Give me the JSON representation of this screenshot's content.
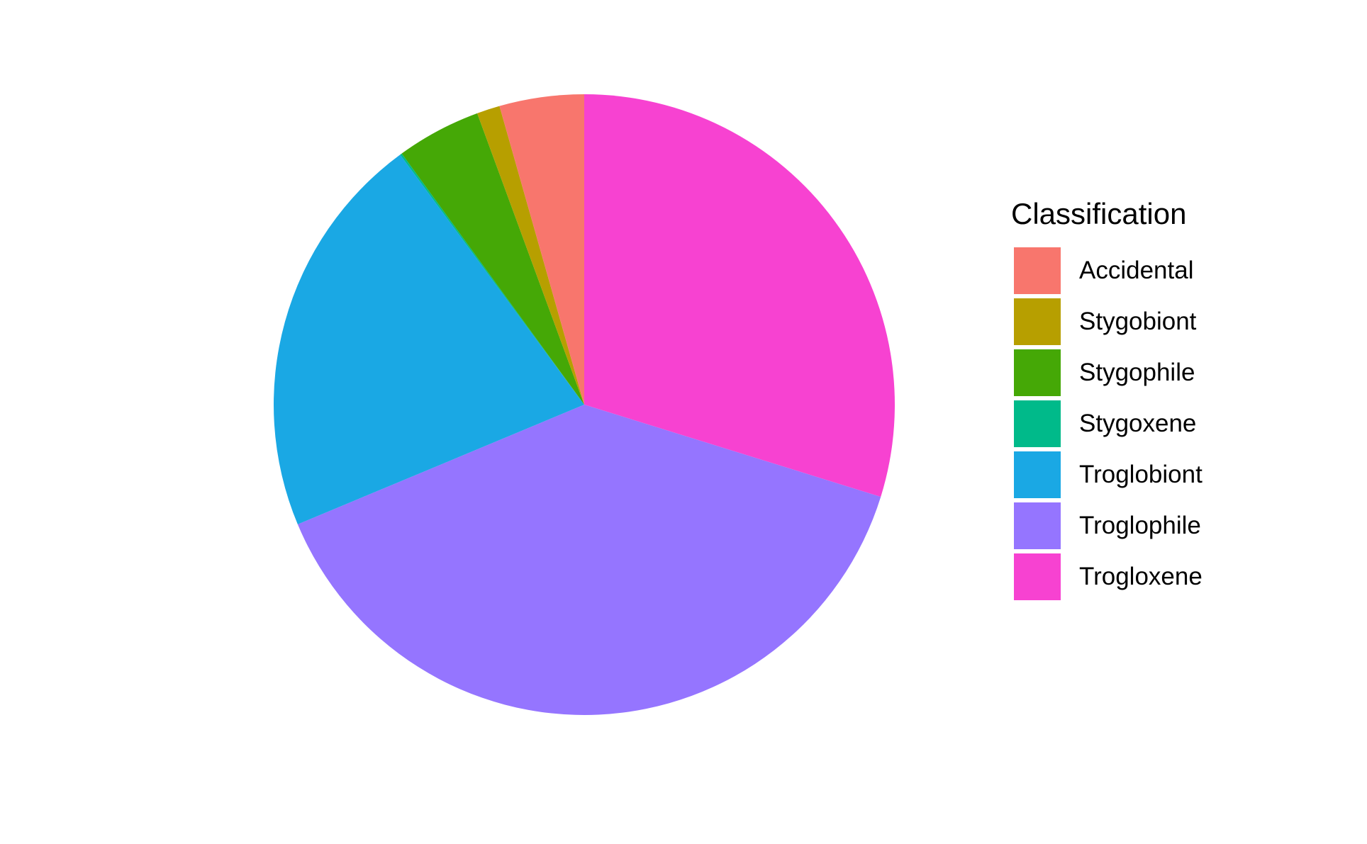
{
  "chart_data": {
    "type": "pie",
    "legend_title": "Classification",
    "legend_position": "right",
    "start_angle": "12 o'clock",
    "direction": "clockwise",
    "slice_order": [
      "Trogloxene",
      "Troglophile",
      "Troglobiont",
      "Stygoxene",
      "Stygophile",
      "Stygobiont",
      "Accidental"
    ],
    "slices": [
      {
        "label": "Accidental",
        "value": 4.4,
        "color": "#F8766D"
      },
      {
        "label": "Stygobiont",
        "value": 1.2,
        "color": "#B79F00"
      },
      {
        "label": "Stygophile",
        "value": 4.4,
        "color": "#45A806"
      },
      {
        "label": "Stygoxene",
        "value": 0.1,
        "color": "#00BA8A"
      },
      {
        "label": "Troglobiont",
        "value": 21.2,
        "color": "#1AA8E4"
      },
      {
        "label": "Troglophile",
        "value": 38.9,
        "color": "#9575FF"
      },
      {
        "label": "Trogloxene",
        "value": 29.8,
        "color": "#F742D1"
      }
    ]
  }
}
